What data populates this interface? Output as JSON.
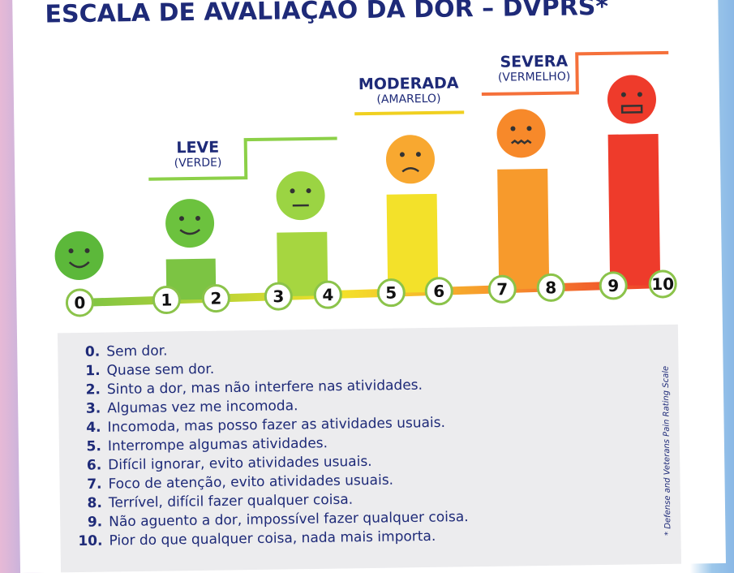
{
  "title": "ESCALA DE AVALIAÇÃO DA DOR – DVPRS*",
  "levels": [
    {
      "label": "LEVE",
      "color_name": "(VERDE)"
    },
    {
      "label": "MODERADA",
      "color_name": "(AMARELO)"
    },
    {
      "label": "SEVERA",
      "color_name": "(VERMELHO)"
    }
  ],
  "scale": [
    0,
    1,
    2,
    3,
    4,
    5,
    6,
    7,
    8,
    9,
    10
  ],
  "descriptions": [
    {
      "number": "0.",
      "text": "Sem dor."
    },
    {
      "number": "1.",
      "text": "Quase sem dor."
    },
    {
      "number": "2.",
      "text": "Sinto a dor, mas não interfere nas atividades."
    },
    {
      "number": "3.",
      "text": "Algumas vez me incomoda."
    },
    {
      "number": "4.",
      "text": "Incomoda, mas posso fazer as atividades usuais."
    },
    {
      "number": "5.",
      "text": "Interrompe algumas atividades."
    },
    {
      "number": "6.",
      "text": "Difícil ignorar, evito atividades usuais."
    },
    {
      "number": "7.",
      "text": "Foco de atenção, evito atividades usuais."
    },
    {
      "number": "8.",
      "text": "Terrível, difícil fazer qualquer coisa."
    },
    {
      "number": "9.",
      "text": "Não aguento a dor, impossível fazer qualquer coisa."
    },
    {
      "number": "10.",
      "text": "Pior do que qualquer coisa, nada mais importa."
    }
  ],
  "footnote": "* Defense and Veterans Pain Rating Scale"
}
